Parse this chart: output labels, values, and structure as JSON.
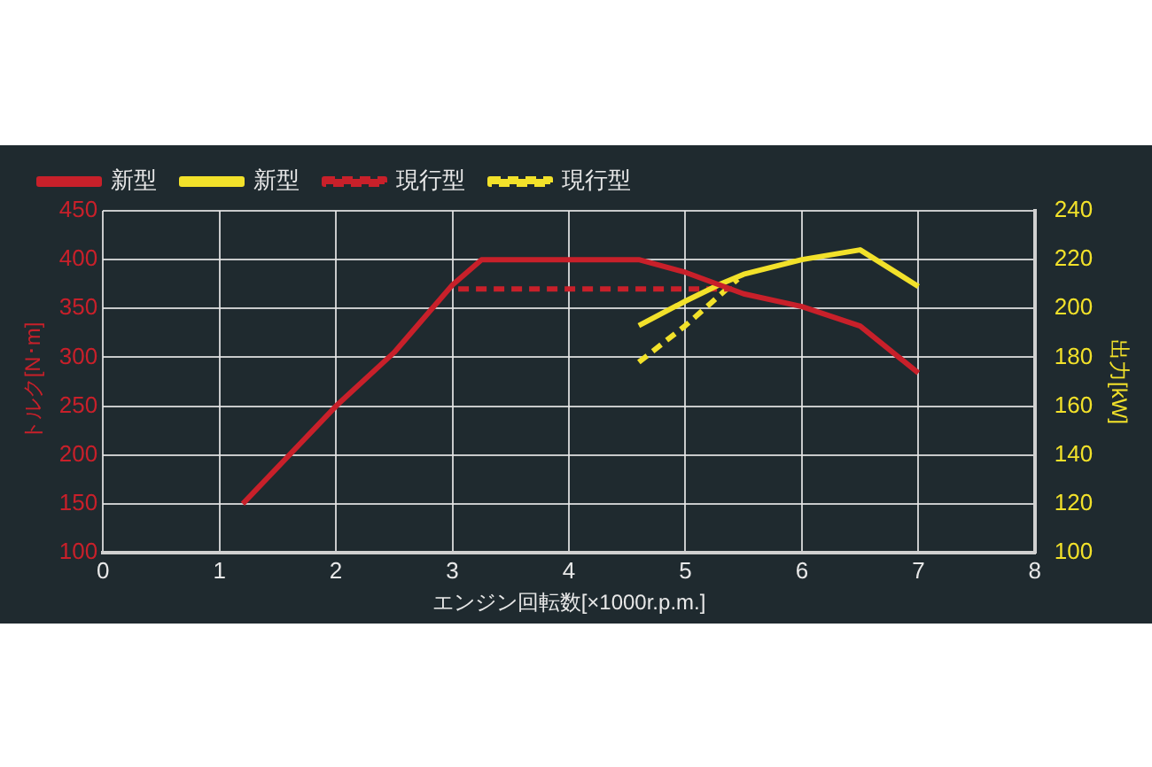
{
  "chart_data": {
    "type": "line",
    "xlabel": "エンジン回転数[×1000r.p.m.]",
    "ylabel": "トルク[N･m]",
    "y2label": "出力[kW]",
    "xlim": [
      0,
      8
    ],
    "xticks": [
      0,
      1,
      2,
      3,
      4,
      5,
      6,
      7,
      8
    ],
    "ylim": [
      100,
      450
    ],
    "yticks": [
      100,
      150,
      200,
      250,
      300,
      350,
      400,
      450
    ],
    "y2lim": [
      100,
      240
    ],
    "y2ticks": [
      100,
      120,
      140,
      160,
      180,
      200,
      220,
      240
    ],
    "grid": true,
    "legend": "top left",
    "marker": "none",
    "series": [
      {
        "name": "新型",
        "color": "#c8202a",
        "line_style": "solid",
        "x": [
          1.2,
          2,
          2.5,
          3,
          3.25,
          4.6,
          5,
          5.5,
          6,
          6.5,
          7
        ],
        "values": [
          150,
          250,
          305,
          374,
          400,
          400,
          387,
          365,
          352,
          332,
          284
        ]
      },
      {
        "name": "新型",
        "color": "#f2e12a",
        "line_style": "solid",
        "axis": "y2",
        "x": [
          4.6,
          5,
          5.3,
          5.5,
          6,
          6.5,
          7
        ],
        "values": [
          193,
          203,
          210,
          214,
          220,
          224,
          209
        ]
      },
      {
        "name": "現行型",
        "color": "#c8202a",
        "line_style": "dashed",
        "x": [
          3.05,
          5.4
        ],
        "values": [
          370,
          370
        ]
      },
      {
        "name": "現行型",
        "color": "#f2e12a",
        "line_style": "dashed",
        "axis": "y2",
        "x": [
          4.6,
          5,
          5.45
        ],
        "values": [
          178,
          193,
          212
        ]
      }
    ]
  }
}
